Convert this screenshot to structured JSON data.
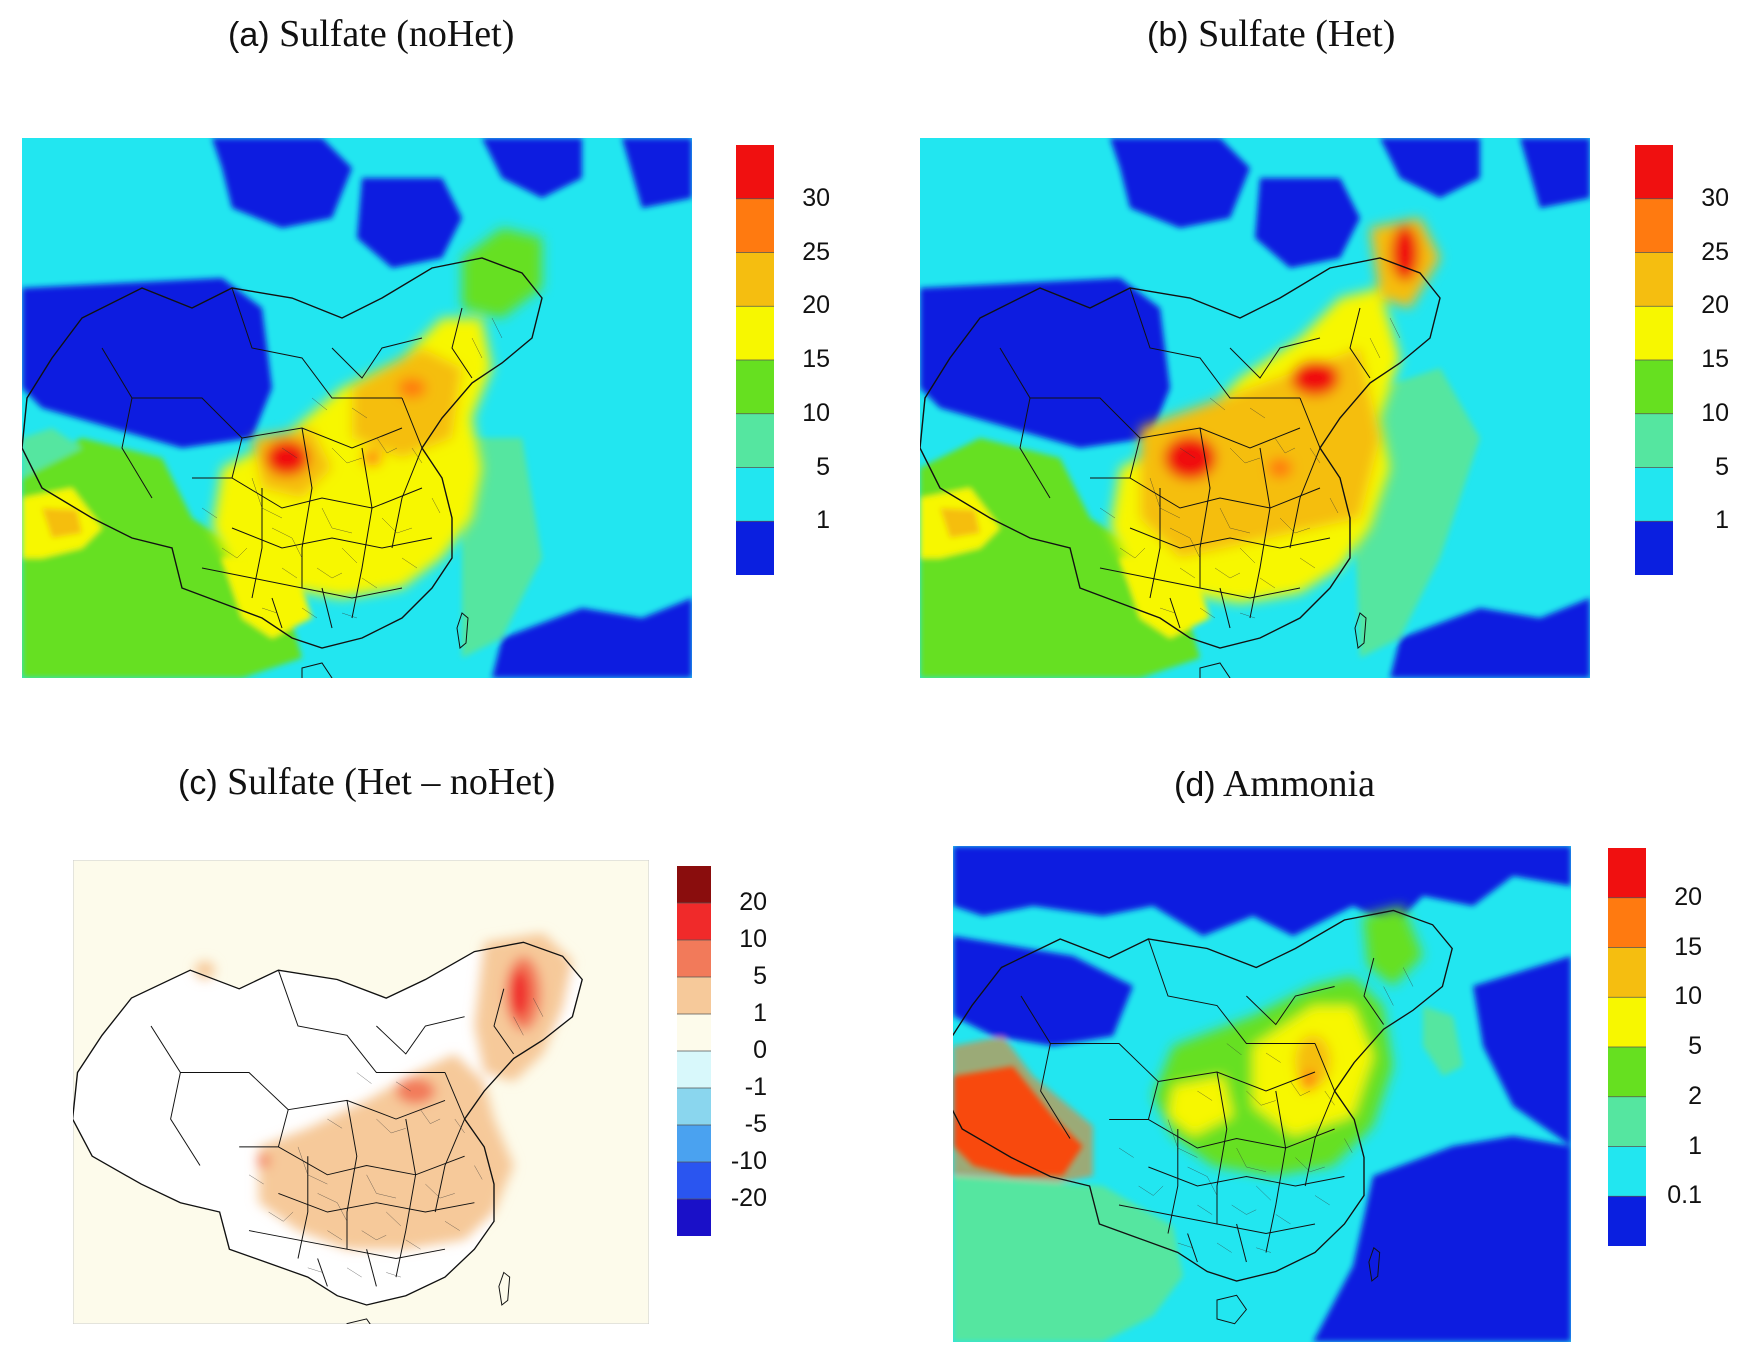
{
  "panels": [
    {
      "tag": "(a)",
      "title": "Sulfate (noHet)",
      "colors": [
        "#0a1fe0",
        "#22e6f0",
        "#55e6a0",
        "#66e020",
        "#f7f700",
        "#f5be10",
        "#ff7a10",
        "#f01010"
      ],
      "labels": [
        "1",
        "5",
        "10",
        "15",
        "20",
        "25",
        "30"
      ]
    },
    {
      "tag": "(b)",
      "title": "Sulfate (Het)",
      "colors": [
        "#0a1fe0",
        "#22e6f0",
        "#55e6a0",
        "#66e020",
        "#f7f700",
        "#f5be10",
        "#ff7a10",
        "#f01010"
      ],
      "labels": [
        "1",
        "5",
        "10",
        "15",
        "20",
        "25",
        "30"
      ]
    },
    {
      "tag": "(c)",
      "title": "Sulfate (Het – noHet)",
      "colors": [
        "#1a10c8",
        "#2a55f0",
        "#4aa2f0",
        "#8ad6ee",
        "#d8f8fb",
        "#fdfbeb",
        "#f6c99a",
        "#f27a5a",
        "#f02a2a",
        "#8a0d0d"
      ],
      "labels": [
        "-20",
        "-10",
        "-5",
        "-1",
        "0",
        "1",
        "5",
        "10",
        "20"
      ]
    },
    {
      "tag": "(d)",
      "title": "Ammonia",
      "colors": [
        "#0a1fe0",
        "#22e6f0",
        "#55e6a0",
        "#66e020",
        "#f7f700",
        "#f5be10",
        "#ff7a10",
        "#f01010"
      ],
      "labels": [
        "0.1",
        "1",
        "2",
        "5",
        "10",
        "15",
        "20"
      ]
    }
  ]
}
